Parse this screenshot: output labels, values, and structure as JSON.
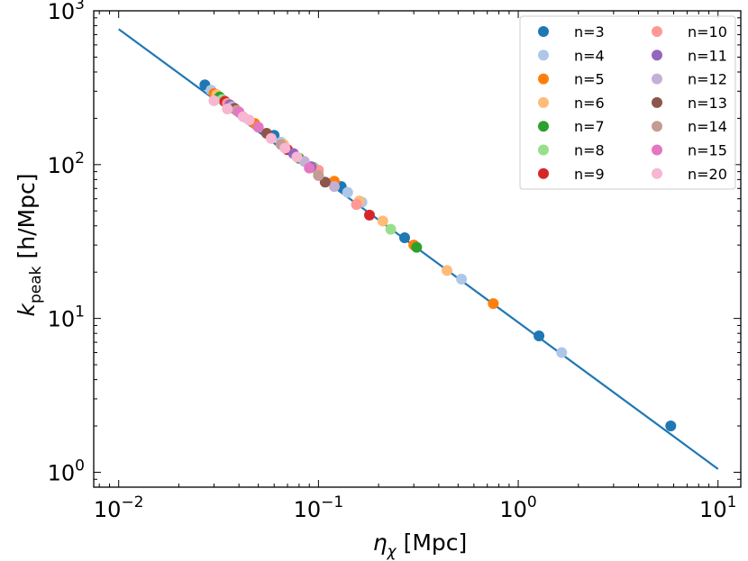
{
  "chart_data": {
    "type": "scatter",
    "xscale": "log",
    "yscale": "log",
    "xlim": [
      0.0075,
      13
    ],
    "ylim": [
      0.8,
      1000
    ],
    "xticks": [
      {
        "value": 0.01,
        "base": "10",
        "exp": "−2"
      },
      {
        "value": 0.1,
        "base": "10",
        "exp": "−1"
      },
      {
        "value": 1,
        "base": "10",
        "exp": "0"
      },
      {
        "value": 10,
        "base": "10",
        "exp": "1"
      }
    ],
    "yticks": [
      {
        "value": 1,
        "base": "10",
        "exp": "0"
      },
      {
        "value": 10,
        "base": "10",
        "exp": "1"
      },
      {
        "value": 100,
        "base": "10",
        "exp": "2"
      },
      {
        "value": 1000,
        "base": "10",
        "exp": "3"
      }
    ],
    "xlabel": {
      "symbol": "η",
      "subscript": "χ",
      "unit": "[Mpc]"
    },
    "ylabel": {
      "symbol": "k",
      "subscript": "peak",
      "unit": "[h/Mpc]"
    },
    "fit_line": {
      "x": [
        0.01,
        10
      ],
      "y": [
        760,
        1.05
      ],
      "color": "#1f77b4"
    },
    "legend_position": "top-right",
    "series": [
      {
        "name": "n=3",
        "color": "#1f77b4",
        "points": [
          [
            0.027,
            330
          ],
          [
            0.06,
            155
          ],
          [
            0.13,
            72
          ],
          [
            0.27,
            33.5
          ],
          [
            1.27,
            7.7
          ],
          [
            5.8,
            2.0
          ]
        ]
      },
      {
        "name": "n=4",
        "color": "#aec7e8",
        "points": [
          [
            0.029,
            305
          ],
          [
            0.065,
            140
          ],
          [
            0.14,
            66
          ],
          [
            0.165,
            57
          ],
          [
            0.52,
            18
          ],
          [
            1.65,
            6.0
          ]
        ]
      },
      {
        "name": "n=5",
        "color": "#ff7f0e",
        "points": [
          [
            0.03,
            290
          ],
          [
            0.048,
            185
          ],
          [
            0.12,
            78
          ],
          [
            0.3,
            30
          ],
          [
            0.75,
            12.5
          ]
        ]
      },
      {
        "name": "n=6",
        "color": "#ffbb78",
        "points": [
          [
            0.031,
            285
          ],
          [
            0.067,
            135
          ],
          [
            0.16,
            58
          ],
          [
            0.21,
            43
          ],
          [
            0.44,
            20.5
          ]
        ]
      },
      {
        "name": "n=7",
        "color": "#2ca02c",
        "points": [
          [
            0.032,
            275
          ],
          [
            0.08,
            110
          ],
          [
            0.31,
            29
          ]
        ]
      },
      {
        "name": "n=8",
        "color": "#98df8a",
        "points": [
          [
            0.033,
            265
          ],
          [
            0.095,
            96
          ],
          [
            0.23,
            38
          ]
        ]
      },
      {
        "name": "n=9",
        "color": "#d62728",
        "points": [
          [
            0.034,
            258
          ],
          [
            0.07,
            125
          ],
          [
            0.18,
            47
          ]
        ]
      },
      {
        "name": "n=10",
        "color": "#ff9896",
        "points": [
          [
            0.035,
            250
          ],
          [
            0.1,
            92
          ],
          [
            0.155,
            55
          ]
        ]
      },
      {
        "name": "n=11",
        "color": "#9467bd",
        "points": [
          [
            0.036,
            245
          ],
          [
            0.075,
            118
          ],
          [
            0.092,
            97
          ]
        ]
      },
      {
        "name": "n=12",
        "color": "#c5b0d5",
        "points": [
          [
            0.037,
            238
          ],
          [
            0.085,
            105
          ],
          [
            0.12,
            72
          ]
        ]
      },
      {
        "name": "n=13",
        "color": "#8c564b",
        "points": [
          [
            0.038,
            232
          ],
          [
            0.055,
            160
          ],
          [
            0.108,
            77
          ]
        ]
      },
      {
        "name": "n=14",
        "color": "#c49c94",
        "points": [
          [
            0.039,
            225
          ],
          [
            0.065,
            135
          ],
          [
            0.1,
            85
          ]
        ]
      },
      {
        "name": "n=15",
        "color": "#e377c2",
        "points": [
          [
            0.04,
            220
          ],
          [
            0.05,
            175
          ],
          [
            0.09,
            95
          ]
        ]
      },
      {
        "name": "n=20",
        "color": "#f7b6d2",
        "points": [
          [
            0.03,
            260
          ],
          [
            0.035,
            230
          ],
          [
            0.042,
            205
          ],
          [
            0.045,
            195
          ],
          [
            0.058,
            148
          ],
          [
            0.068,
            128
          ],
          [
            0.078,
            112
          ]
        ]
      }
    ]
  }
}
